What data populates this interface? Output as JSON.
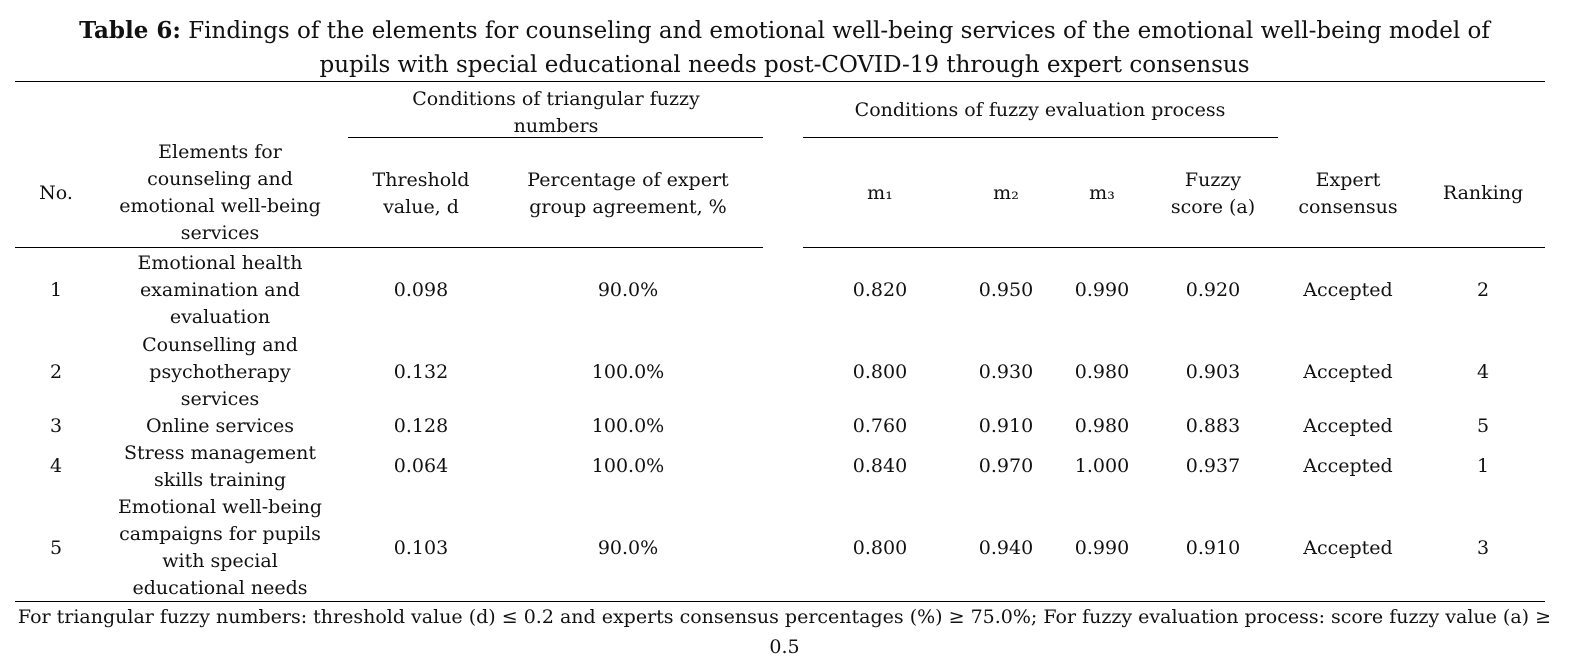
{
  "caption": {
    "label": "Table 6:",
    "line1": "Findings of the elements for counseling and emotional well-being services of the emotional well-being model of",
    "line2": "pupils with special educational needs post-COVID-19 through expert consensus"
  },
  "header": {
    "group_tfn": "Conditions of triangular fuzzy numbers",
    "group_fep": "Conditions of fuzzy evaluation process",
    "no": "No.",
    "element": "Elements for counseling and emotional well-being services",
    "threshold": "Threshold value, d",
    "percentage": "Percentage of expert group agreement, %",
    "m1": "m₁",
    "m2": "m₂",
    "m3": "m₃",
    "fuzzy_score": "Fuzzy score (a)",
    "consensus": "Expert consensus",
    "ranking": "Ranking"
  },
  "rows": [
    {
      "no": "1",
      "element": "Emotional health examination and evaluation",
      "threshold": "0.098",
      "percentage": "90.0%",
      "m1": "0.820",
      "m2": "0.950",
      "m3": "0.990",
      "fuzzy": "0.920",
      "consensus": "Accepted",
      "ranking": "2"
    },
    {
      "no": "2",
      "element": "Counselling and psychotherapy services",
      "threshold": "0.132",
      "percentage": "100.0%",
      "m1": "0.800",
      "m2": "0.930",
      "m3": "0.980",
      "fuzzy": "0.903",
      "consensus": "Accepted",
      "ranking": "4"
    },
    {
      "no": "3",
      "element": "Online services",
      "threshold": "0.128",
      "percentage": "100.0%",
      "m1": "0.760",
      "m2": "0.910",
      "m3": "0.980",
      "fuzzy": "0.883",
      "consensus": "Accepted",
      "ranking": "5"
    },
    {
      "no": "4",
      "element": "Stress management skills training",
      "threshold": "0.064",
      "percentage": "100.0%",
      "m1": "0.840",
      "m2": "0.970",
      "m3": "1.000",
      "fuzzy": "0.937",
      "consensus": "Accepted",
      "ranking": "1"
    },
    {
      "no": "5",
      "element": "Emotional well-being campaigns for pupils with special educational needs",
      "threshold": "0.103",
      "percentage": "90.0%",
      "m1": "0.800",
      "m2": "0.940",
      "m3": "0.990",
      "fuzzy": "0.910",
      "consensus": "Accepted",
      "ranking": "3"
    }
  ],
  "footnote": "For triangular fuzzy numbers: threshold value (d) ≤ 0.2 and experts consensus percentages (%) ≥ 75.0%; For fuzzy evaluation process: score fuzzy value (a) ≥ 0.5"
}
